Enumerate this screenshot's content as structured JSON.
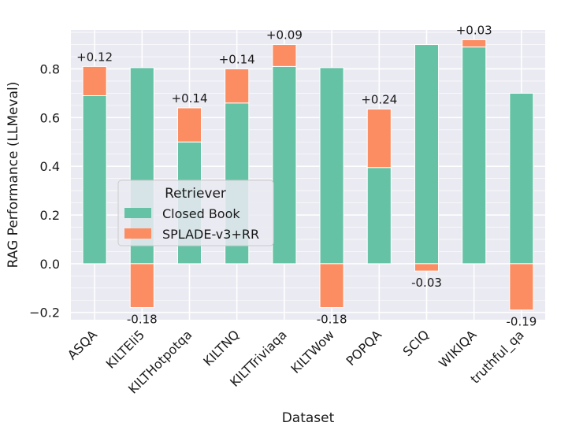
{
  "chart_data": {
    "type": "bar",
    "stacked": true,
    "xlabel": "Dataset",
    "ylabel": "RAG Performance (LLMeval)",
    "categories": [
      "ASQA",
      "KILTEli5",
      "KILTHotpotqa",
      "KILTNQ",
      "KILTTriviaqa",
      "KILTWow",
      "POPQA",
      "SCIQ",
      "WIKIQA",
      "truthful_qa"
    ],
    "ylim": [
      -0.23,
      0.96
    ],
    "yticks": [
      -0.2,
      0.0,
      0.2,
      0.4,
      0.6,
      0.8
    ],
    "ytick_labels": [
      "−0.2",
      "0.0",
      "0.2",
      "0.4",
      "0.6",
      "0.8"
    ],
    "grid": true,
    "series": [
      {
        "name": "Closed Book",
        "color": "#66c2a5",
        "values": [
          0.69,
          0.805,
          0.5,
          0.66,
          0.81,
          0.805,
          0.395,
          0.9,
          0.89,
          0.7
        ]
      },
      {
        "name": "SPLADE-v3+RR",
        "color": "#fc8d62",
        "values": [
          0.12,
          -0.18,
          0.14,
          0.14,
          0.09,
          -0.18,
          0.24,
          -0.03,
          0.03,
          -0.19
        ]
      }
    ],
    "annotations": [
      "+0.12",
      "-0.18",
      "+0.14",
      "+0.14",
      "+0.09",
      "-0.18",
      "+0.24",
      "-0.03",
      "+0.03",
      "-0.19"
    ],
    "legend": {
      "title": "Retriever",
      "placement": "center-left",
      "entries": [
        "Closed Book",
        "SPLADE-v3+RR"
      ]
    }
  }
}
